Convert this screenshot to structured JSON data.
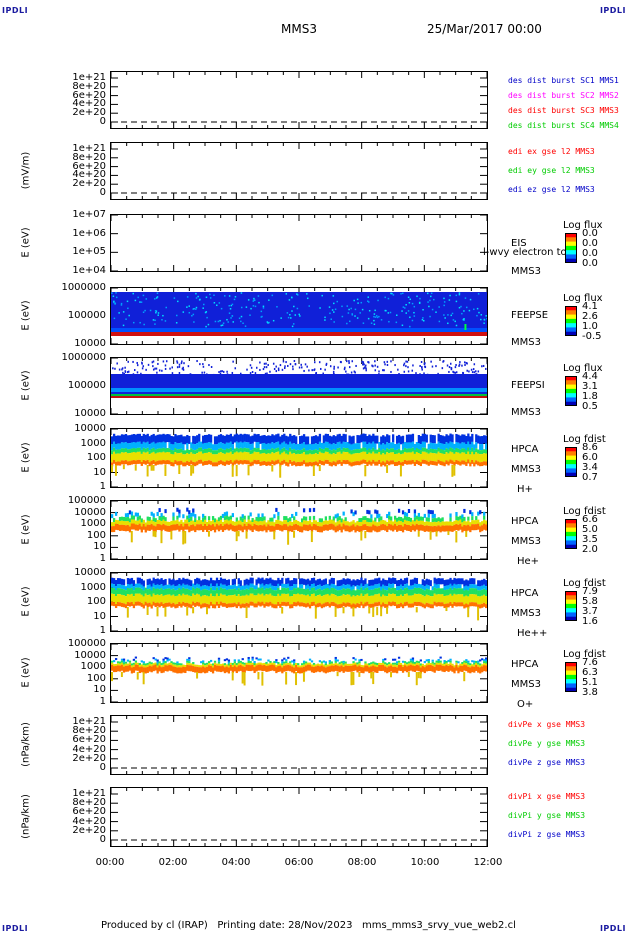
{
  "corners": {
    "tl": "IPDLI",
    "tr": "IPDLI",
    "bl": "IPDLI",
    "br": "IPDLI"
  },
  "header": {
    "spacecraft": "MMS3",
    "date": "25/Mar/2017 00:00"
  },
  "footer": "Produced by cl (IRAP)   Printing date: 28/Nov/2023   mms_mms3_srvy_vue_web2.cl",
  "x_ticks": [
    "00:00",
    "02:00",
    "04:00",
    "06:00",
    "08:00",
    "10:00",
    "12:00"
  ],
  "colors": {
    "blue": "#0000c8",
    "magenta": "#ff00ff",
    "red": "#ff0000",
    "green": "#00cc00"
  },
  "chart_data": [
    {
      "type": "line",
      "id": "dist_burst",
      "ylabel": "",
      "yticks": [
        "1e+21",
        "8e+20",
        "6e+20",
        "4e+20",
        "2e+20",
        "0"
      ],
      "legend": [
        {
          "name": "des dist burst SC1 MMS1",
          "color": "#0000c8"
        },
        {
          "name": "des dist burst SC2 MMS2",
          "color": "#ff00ff"
        },
        {
          "name": "des dist burst SC3 MMS3",
          "color": "#ff0000"
        },
        {
          "name": "des dist burst SC4 MMS4",
          "color": "#00cc00"
        }
      ],
      "series": []
    },
    {
      "type": "line",
      "id": "edi",
      "ylabel": "(mV/m)",
      "yticks": [
        "1e+21",
        "8e+20",
        "6e+20",
        "4e+20",
        "2e+20",
        "0"
      ],
      "legend": [
        {
          "name": "edi ex gse l2 MMS3",
          "color": "#ff0000"
        },
        {
          "name": "edi ey gse l2 MMS3",
          "color": "#00cc00"
        },
        {
          "name": "edi ez gse l2 MMS3",
          "color": "#0000c8"
        }
      ],
      "series": []
    },
    {
      "type": "heatmap",
      "id": "eis",
      "ylabel": "E (eV)",
      "yticks": [
        "1e+07",
        "1e+06",
        "1e+05",
        "1e+04"
      ],
      "inst": [
        "EIS",
        "MMS3"
      ],
      "overlay": "l-wvy electron to",
      "cbtitle": "Log flux",
      "cbvals": [
        "0.0",
        "0.0",
        "0.0",
        "0.0"
      ]
    },
    {
      "type": "heatmap",
      "id": "feepse",
      "ylabel": "E (eV)",
      "yticks": [
        "1000000",
        "100000",
        "10000"
      ],
      "inst": [
        "FEEPSE",
        "MMS3"
      ],
      "cbtitle": "Log flux",
      "cbvals": [
        "4.1",
        "2.6",
        "1.0",
        "-0.5"
      ]
    },
    {
      "type": "heatmap",
      "id": "feepsi",
      "ylabel": "E (eV)",
      "yticks": [
        "1000000",
        "100000",
        "10000"
      ],
      "inst": [
        "FEEPSI",
        "MMS3"
      ],
      "cbtitle": "Log flux",
      "cbvals": [
        "4.4",
        "3.1",
        "1.8",
        "0.5"
      ]
    },
    {
      "type": "heatmap",
      "id": "hpca_h",
      "ylabel": "E (eV)",
      "yticks": [
        "10000",
        "1000",
        "100",
        "10",
        "1"
      ],
      "inst": [
        "HPCA",
        "MMS3",
        "H+"
      ],
      "cbtitle": "Log fdist",
      "cbvals": [
        "8.6",
        "6.0",
        "3.4",
        "0.7"
      ]
    },
    {
      "type": "heatmap",
      "id": "hpca_he",
      "ylabel": "E (eV)",
      "yticks": [
        "100000",
        "10000",
        "1000",
        "100",
        "10",
        "1"
      ],
      "inst": [
        "HPCA",
        "MMS3",
        "He+"
      ],
      "cbtitle": "Log fdist",
      "cbvals": [
        "6.6",
        "5.0",
        "3.5",
        "2.0"
      ]
    },
    {
      "type": "heatmap",
      "id": "hpca_hepp",
      "ylabel": "E (eV)",
      "yticks": [
        "10000",
        "1000",
        "100",
        "10",
        "1"
      ],
      "inst": [
        "HPCA",
        "MMS3",
        "He++"
      ],
      "cbtitle": "Log fdist",
      "cbvals": [
        "7.9",
        "5.8",
        "3.7",
        "1.6"
      ]
    },
    {
      "type": "heatmap",
      "id": "hpca_o",
      "ylabel": "E (eV)",
      "yticks": [
        "100000",
        "10000",
        "1000",
        "100",
        "10",
        "1"
      ],
      "inst": [
        "HPCA",
        "MMS3",
        "O+"
      ],
      "cbtitle": "Log fdist",
      "cbvals": [
        "7.6",
        "6.3",
        "5.1",
        "3.8"
      ]
    },
    {
      "type": "line",
      "id": "divpe",
      "ylabel": "(nPa/km)",
      "yticks": [
        "1e+21",
        "8e+20",
        "6e+20",
        "4e+20",
        "2e+20",
        "0"
      ],
      "legend": [
        {
          "name": "divPe x gse MMS3",
          "color": "#ff0000"
        },
        {
          "name": "divPe y gse MMS3",
          "color": "#00cc00"
        },
        {
          "name": "divPe z gse MMS3",
          "color": "#0000c8"
        }
      ],
      "series": []
    },
    {
      "type": "line",
      "id": "divpi",
      "ylabel": "(nPa/km)",
      "yticks": [
        "1e+21",
        "8e+20",
        "6e+20",
        "4e+20",
        "2e+20",
        "0"
      ],
      "legend": [
        {
          "name": "divPi x gse MMS3",
          "color": "#ff0000"
        },
        {
          "name": "divPi y gse MMS3",
          "color": "#00cc00"
        },
        {
          "name": "divPi z gse MMS3",
          "color": "#0000c8"
        }
      ],
      "series": []
    }
  ]
}
